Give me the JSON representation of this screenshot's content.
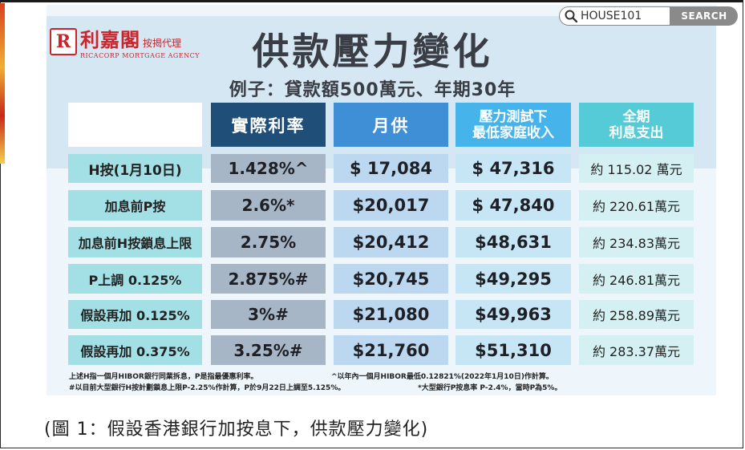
{
  "search": {
    "value": "HOUSE101",
    "button_label": "SEARCH"
  },
  "logo": {
    "mark": "R",
    "name_cn": "利嘉閣",
    "tag_cn": "按揭代理",
    "name_en": "RICACORP MORTGAGE AGENCY"
  },
  "title": "供款壓力變化",
  "subtitle": "例子：貸款額500萬元、年期30年",
  "table": {
    "headers": [
      "實際利率",
      "月供",
      "壓力測試下\n最低家庭收入",
      "全期\n利息支出"
    ],
    "rows": [
      {
        "label": "H按(1月10日)",
        "rate": "1.428%^",
        "monthly": "$ 17,084",
        "income": "$ 47,316",
        "interest": "約 115.02 萬元"
      },
      {
        "label": "加息前P按",
        "rate": "2.6%*",
        "monthly": "$20,017",
        "income": "$ 47,840",
        "interest": "約 220.61萬元"
      },
      {
        "label": "加息前H按鎖息上限",
        "rate": "2.75%",
        "monthly": "$20,412",
        "income": "$48,631",
        "interest": "約 234.83萬元"
      },
      {
        "label": "P上調 0.125%",
        "rate": "2.875%#",
        "monthly": "$20,745",
        "income": "$49,295",
        "interest": "約 246.81萬元"
      },
      {
        "label": "假設再加 0.125%",
        "rate": "3%#",
        "monthly": "$21,080",
        "income": "$49,963",
        "interest": "約 258.89萬元"
      },
      {
        "label": "假設再加 0.375%",
        "rate": "3.25%#",
        "monthly": "$21,760",
        "income": "$51,310",
        "interest": "約 283.37萬元"
      }
    ]
  },
  "notes": {
    "n1": "上述H指一個月HIBOR銀行同業拆息，P是指最優惠利率。",
    "n2": "^以年內一個月HIBOR最低0.12821%(2022年1月10日)作計算。",
    "n3": "#以目前大型銀行H按計劃鎖息上限P-2.25%作計算，P於9月22日上調至5.125%。",
    "n4": "*大型銀行P按息率 P-2.4%，當時P為5%。"
  },
  "caption": "(圖 1：假設香港銀行加按息下，供款壓力變化)"
}
